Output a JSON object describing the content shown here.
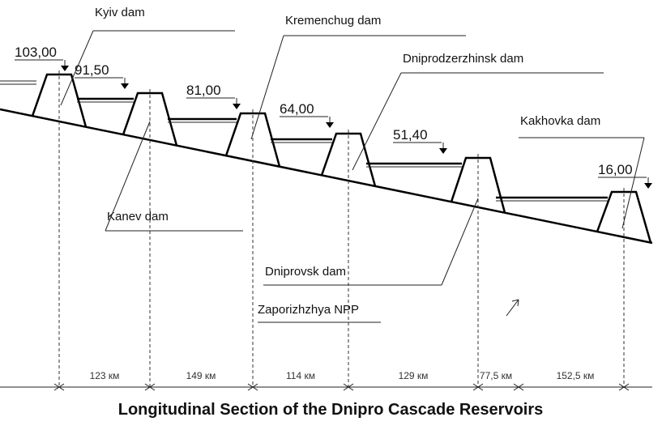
{
  "title": "Longitudinal Section of the Dnipro Cascade Reservoirs",
  "dams": [
    {
      "label": "Kyiv dam",
      "elevation": "103,00"
    },
    {
      "label": "Kanev dam",
      "elevation": "91,50"
    },
    {
      "label": "Kremenchug dam",
      "elevation": "81,00"
    },
    {
      "label": "Dniprodzerzhinsk dam",
      "elevation": "64,00"
    },
    {
      "label": "Dniprovsk dam",
      "elevation": "51,40"
    },
    {
      "label": "Kakhovka dam",
      "elevation": "16,00"
    }
  ],
  "annotations": [
    "Zaporizhzhya NPP"
  ],
  "distances": [
    "123 км",
    "149 км",
    "114 км",
    "129 км",
    "77,5 км",
    "152,5 км"
  ]
}
